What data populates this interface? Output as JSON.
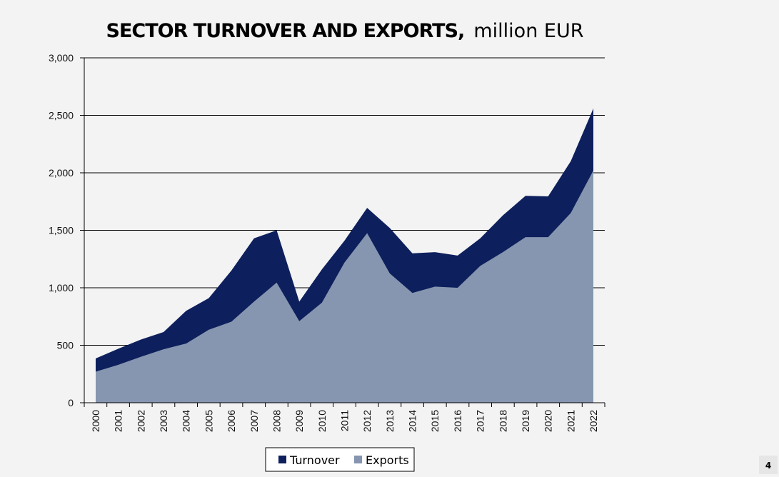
{
  "chart_data": {
    "type": "area",
    "title": "SECTOR TURNOVER AND EXPORTS,",
    "subtitle": "million EUR",
    "xlabel": "",
    "ylabel": "",
    "categories": [
      "2000",
      "2001",
      "2002",
      "2003",
      "2004",
      "2005",
      "2006",
      "2007",
      "2008",
      "2009",
      "2010",
      "2011",
      "2012",
      "2013",
      "2014",
      "2015",
      "2016",
      "2017",
      "2018",
      "2019",
      "2020",
      "2021",
      "2022"
    ],
    "series": [
      {
        "name": "Turnover",
        "color": "#0d1f5c",
        "values": [
          385,
          470,
          550,
          615,
          800,
          910,
          1150,
          1430,
          1500,
          880,
          1160,
          1410,
          1695,
          1520,
          1300,
          1310,
          1280,
          1430,
          1630,
          1800,
          1795,
          2100,
          2560
        ]
      },
      {
        "name": "Exports",
        "color": "#8696b0",
        "values": [
          270,
          330,
          400,
          465,
          515,
          635,
          705,
          880,
          1045,
          710,
          870,
          1220,
          1475,
          1125,
          955,
          1010,
          1000,
          1190,
          1310,
          1440,
          1440,
          1650,
          2020
        ]
      }
    ],
    "ylim": [
      0,
      3000
    ],
    "yticks": [
      0,
      500,
      1000,
      1500,
      2000,
      2500,
      3000
    ],
    "ytick_labels": [
      "0",
      "500",
      "1,000",
      "1,500",
      "2,000",
      "2,500",
      "3,000"
    ],
    "grid": true,
    "legend": "bottom-center"
  },
  "page": {
    "number": "4"
  }
}
